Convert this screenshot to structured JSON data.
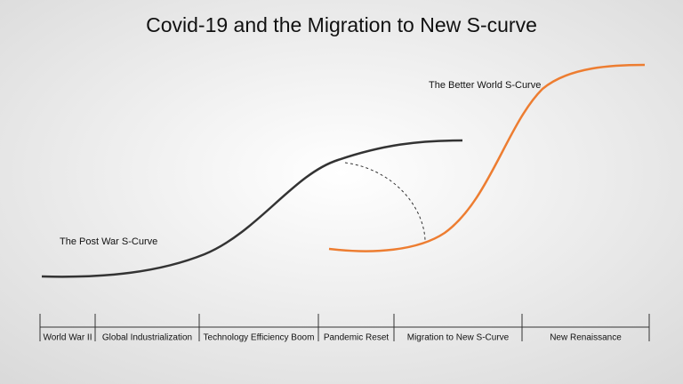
{
  "header": {
    "title": "Covid-19 and the Migration to New S-curve"
  },
  "curves": [
    {
      "label": "The Post War S-Curve"
    },
    {
      "label": "The Better World S-Curve"
    }
  ],
  "timeline": {
    "segments": [
      "World War II",
      "Global Industrialization",
      "Technology Efficiency Boom",
      "Pandemic Reset",
      "Migration to New S-Curve",
      "New Renaissance"
    ]
  }
}
